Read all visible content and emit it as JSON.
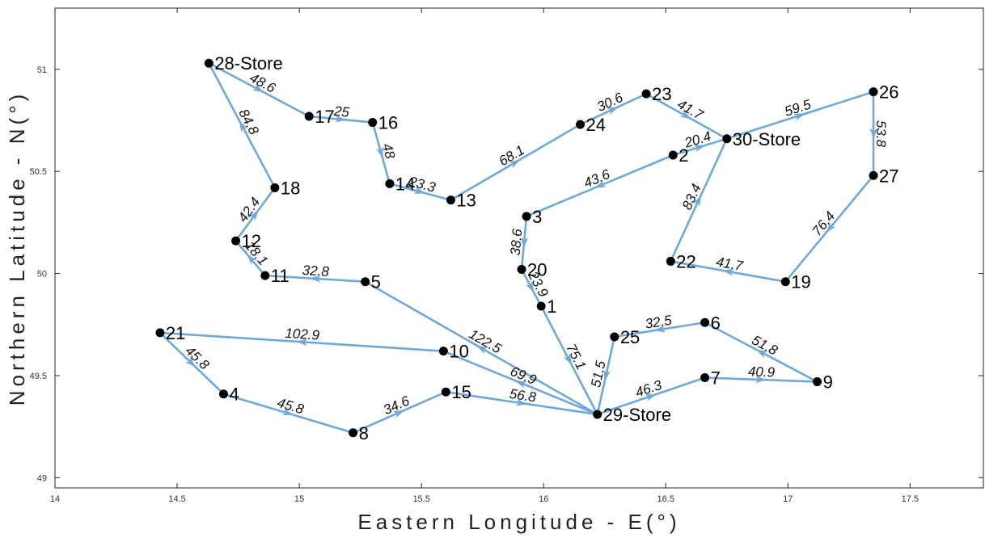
{
  "chart_data": {
    "type": "network",
    "xlabel": "Eastern Longitude - E(°)",
    "ylabel": "Northern Latitude - N(°)",
    "xlim": [
      14,
      17.8
    ],
    "ylim": [
      48.95,
      51.3
    ],
    "xticks": [
      "14",
      "14.5",
      "15",
      "15.5",
      "16",
      "16.5",
      "17",
      "17.5"
    ],
    "yticks": [
      "49",
      "49.5",
      "50",
      "50.5",
      "51"
    ],
    "grid": false,
    "edge_color": "#6fa8d9",
    "node_color": "#000000",
    "nodes": [
      {
        "id": "1",
        "label": "1",
        "x": 15.99,
        "y": 49.84
      },
      {
        "id": "2",
        "label": "2",
        "x": 16.53,
        "y": 50.58
      },
      {
        "id": "3",
        "label": "3",
        "x": 15.93,
        "y": 50.28
      },
      {
        "id": "4",
        "label": "4",
        "x": 14.69,
        "y": 49.41
      },
      {
        "id": "5",
        "label": "5",
        "x": 15.27,
        "y": 49.96
      },
      {
        "id": "6",
        "label": "6",
        "x": 16.66,
        "y": 49.76
      },
      {
        "id": "7",
        "label": "7",
        "x": 16.66,
        "y": 49.49
      },
      {
        "id": "8",
        "label": "8",
        "x": 15.22,
        "y": 49.22
      },
      {
        "id": "9",
        "label": "9",
        "x": 17.12,
        "y": 49.47
      },
      {
        "id": "10",
        "label": "10",
        "x": 15.59,
        "y": 49.62
      },
      {
        "id": "11",
        "label": "11",
        "x": 14.86,
        "y": 49.99
      },
      {
        "id": "12",
        "label": "12",
        "x": 14.74,
        "y": 50.16
      },
      {
        "id": "13",
        "label": "13",
        "x": 15.62,
        "y": 50.36
      },
      {
        "id": "14",
        "label": "14",
        "x": 15.37,
        "y": 50.44
      },
      {
        "id": "15",
        "label": "15",
        "x": 15.6,
        "y": 49.42
      },
      {
        "id": "16",
        "label": "16",
        "x": 15.3,
        "y": 50.74
      },
      {
        "id": "17",
        "label": "17",
        "x": 15.04,
        "y": 50.77
      },
      {
        "id": "18",
        "label": "18",
        "x": 14.9,
        "y": 50.42
      },
      {
        "id": "19",
        "label": "19",
        "x": 16.99,
        "y": 49.96
      },
      {
        "id": "20",
        "label": "20",
        "x": 15.91,
        "y": 50.02
      },
      {
        "id": "21",
        "label": "21",
        "x": 14.43,
        "y": 49.71
      },
      {
        "id": "22",
        "label": "22",
        "x": 16.52,
        "y": 50.06
      },
      {
        "id": "23",
        "label": "23",
        "x": 16.42,
        "y": 50.88
      },
      {
        "id": "24",
        "label": "24",
        "x": 16.15,
        "y": 50.73
      },
      {
        "id": "25",
        "label": "25",
        "x": 16.29,
        "y": 49.69
      },
      {
        "id": "26",
        "label": "26",
        "x": 17.35,
        "y": 50.89
      },
      {
        "id": "27",
        "label": "27",
        "x": 17.35,
        "y": 50.48
      },
      {
        "id": "28",
        "label": "28-Store",
        "x": 14.63,
        "y": 51.03
      },
      {
        "id": "29",
        "label": "29-Store",
        "x": 16.22,
        "y": 49.31
      },
      {
        "id": "30",
        "label": "30-Store",
        "x": 16.75,
        "y": 50.66
      }
    ],
    "edges": [
      {
        "from": "28",
        "to": "17",
        "label": "48.6"
      },
      {
        "from": "17",
        "to": "16",
        "label": "25"
      },
      {
        "from": "16",
        "to": "14",
        "label": "48"
      },
      {
        "from": "14",
        "to": "13",
        "label": "23.3"
      },
      {
        "from": "13",
        "to": "24",
        "label": "68.1"
      },
      {
        "from": "24",
        "to": "23",
        "label": "30.6"
      },
      {
        "from": "23",
        "to": "30",
        "label": "41.7"
      },
      {
        "from": "2",
        "to": "30",
        "label": "20.4"
      },
      {
        "from": "2",
        "to": "3",
        "label": "43.6"
      },
      {
        "from": "3",
        "to": "20",
        "label": "38.6"
      },
      {
        "from": "20",
        "to": "1",
        "label": "23.9"
      },
      {
        "from": "1",
        "to": "29",
        "label": "75.1"
      },
      {
        "from": "18",
        "to": "28",
        "label": "84.8"
      },
      {
        "from": "12",
        "to": "18",
        "label": "42.4"
      },
      {
        "from": "11",
        "to": "12",
        "label": "18.1"
      },
      {
        "from": "5",
        "to": "11",
        "label": "32.8"
      },
      {
        "from": "29",
        "to": "5",
        "label": "122.5"
      },
      {
        "from": "29",
        "to": "10",
        "label": "69.9"
      },
      {
        "from": "10",
        "to": "21",
        "label": "102.9"
      },
      {
        "from": "21",
        "to": "4",
        "label": "45.8"
      },
      {
        "from": "4",
        "to": "8",
        "label": "45.8"
      },
      {
        "from": "8",
        "to": "15",
        "label": "34.6"
      },
      {
        "from": "15",
        "to": "29",
        "label": "56.8"
      },
      {
        "from": "29",
        "to": "7",
        "label": "46.3"
      },
      {
        "from": "7",
        "to": "9",
        "label": "40.9"
      },
      {
        "from": "9",
        "to": "6",
        "label": "51.8"
      },
      {
        "from": "6",
        "to": "25",
        "label": "32.5"
      },
      {
        "from": "25",
        "to": "29",
        "label": "51.5"
      },
      {
        "from": "30",
        "to": "26",
        "label": "59.5"
      },
      {
        "from": "26",
        "to": "27",
        "label": "53.8"
      },
      {
        "from": "27",
        "to": "19",
        "label": "76.4"
      },
      {
        "from": "19",
        "to": "22",
        "label": "41.7"
      },
      {
        "from": "22",
        "to": "30",
        "label": "83.4"
      }
    ]
  }
}
